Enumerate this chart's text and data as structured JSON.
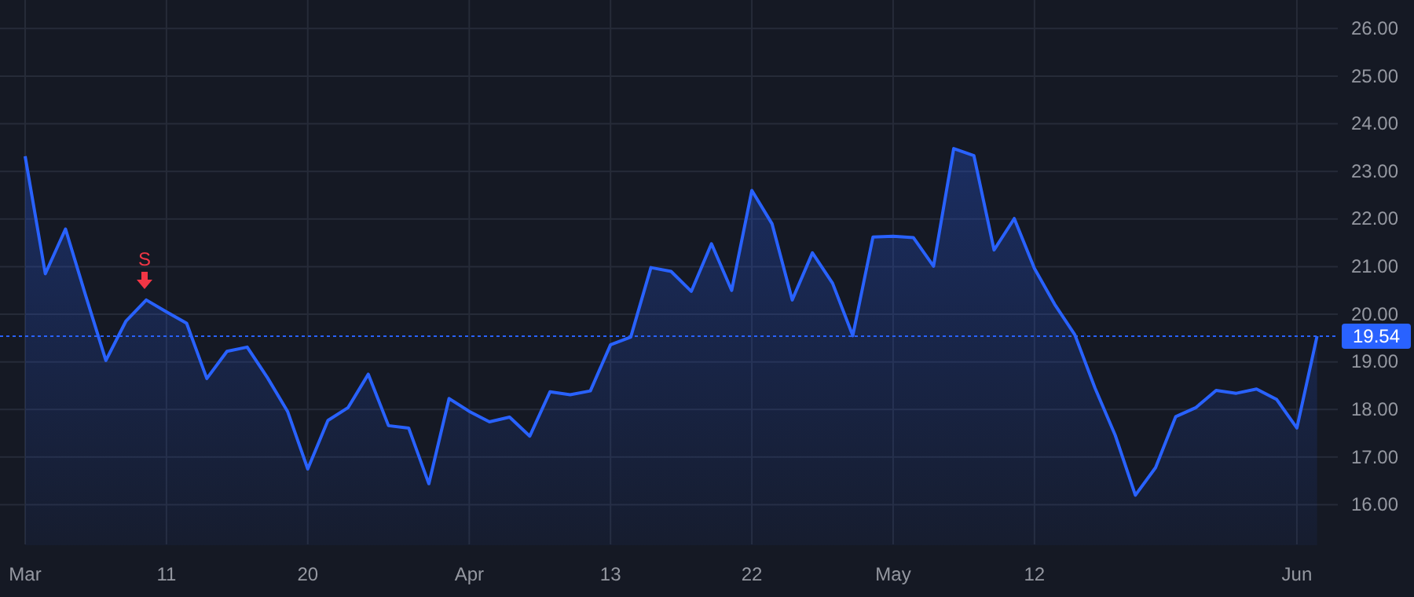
{
  "chart_data": {
    "type": "area",
    "categories": [
      "Mar",
      null,
      null,
      null,
      null,
      null,
      null,
      "11",
      null,
      null,
      null,
      null,
      null,
      null,
      "20",
      null,
      null,
      null,
      null,
      null,
      null,
      null,
      "Apr",
      null,
      null,
      null,
      null,
      null,
      null,
      "13",
      null,
      null,
      null,
      null,
      null,
      null,
      "22",
      null,
      null,
      null,
      null,
      null,
      null,
      "May",
      null,
      null,
      null,
      null,
      null,
      null,
      "12",
      null,
      null,
      null,
      null,
      null,
      null,
      null,
      null,
      null,
      null,
      null,
      null,
      "Jun",
      null
    ],
    "series": [
      {
        "color": "#2962ff",
        "values": [
          23.32,
          20.85,
          21.79,
          20.39,
          19.03,
          19.86,
          20.3,
          20.05,
          19.81,
          18.65,
          19.22,
          19.31,
          18.67,
          17.96,
          16.75,
          17.77,
          18.04,
          18.74,
          17.66,
          17.61,
          16.44,
          18.23,
          17.96,
          17.74,
          17.84,
          17.44,
          18.37,
          18.31,
          18.39,
          19.36,
          19.52,
          20.98,
          20.9,
          20.48,
          21.48,
          20.5,
          22.6,
          21.9,
          20.3,
          21.29,
          20.65,
          19.55,
          21.62,
          21.64,
          21.61,
          21.01,
          23.48,
          23.33,
          21.35,
          22.01,
          20.96,
          20.21,
          19.57,
          18.45,
          17.46,
          16.2,
          16.78,
          17.85,
          18.04,
          18.4,
          18.34,
          18.43,
          18.21,
          17.61,
          19.54
        ]
      }
    ],
    "ylim": [
      15.15,
      26.6
    ],
    "yticks": [
      {
        "value": 16,
        "label": "16.00"
      },
      {
        "value": 17,
        "label": "17.00"
      },
      {
        "value": 18,
        "label": "18.00"
      },
      {
        "value": 19,
        "label": "19.00"
      },
      {
        "value": 20,
        "label": "20.00"
      },
      {
        "value": 21,
        "label": "21.00"
      },
      {
        "value": 22,
        "label": "22.00"
      },
      {
        "value": 23,
        "label": "23.00"
      },
      {
        "value": 24,
        "label": "24.00"
      },
      {
        "value": 25,
        "label": "25.00"
      },
      {
        "value": 26,
        "label": "26.00"
      }
    ],
    "grid": true,
    "ref_lines": [
      {
        "axis": "y",
        "value": 19.54,
        "label": "19.54",
        "color": "#2962ff",
        "line_style": "dotted"
      }
    ],
    "annotations": [
      "S"
    ]
  }
}
